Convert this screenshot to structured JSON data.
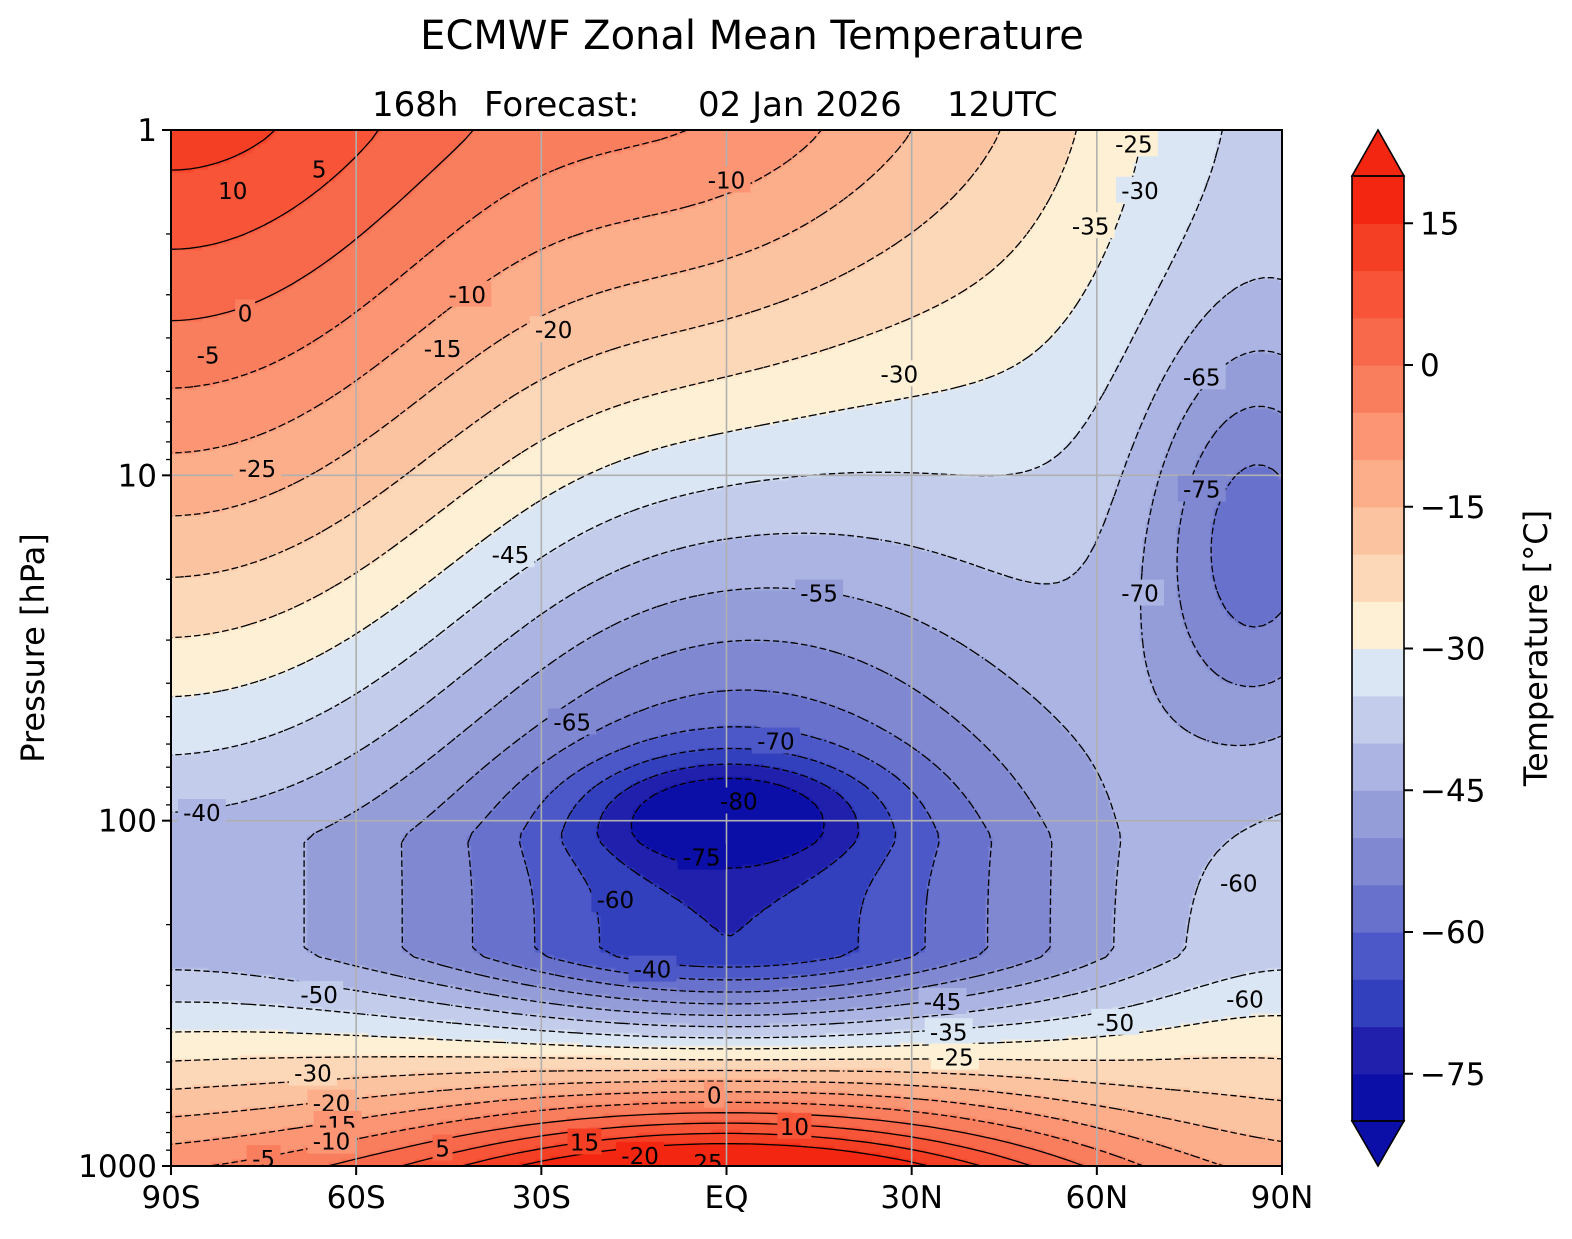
{
  "chart_data": {
    "type": "heatmap",
    "title": "ECMWF Zonal Mean Temperature",
    "subtitle": {
      "lead": "168h",
      "forecast_word": "Forecast:",
      "date": "02 Jan 2026",
      "time": "12UTC"
    },
    "xlabel": "",
    "ylabel": "Pressure [hPa]",
    "x_ticks": [
      "90S",
      "60S",
      "30S",
      "EQ",
      "30N",
      "60N",
      "90N"
    ],
    "x_values": [
      -90,
      -60,
      -30,
      0,
      30,
      60,
      90
    ],
    "xlim": [
      -90,
      90
    ],
    "y_ticks": [
      "1",
      "10",
      "100",
      "1000"
    ],
    "y_values": [
      1,
      10,
      100,
      1000
    ],
    "ylim": [
      1000,
      1
    ],
    "y_scale": "log",
    "grid": true,
    "colorbar": {
      "label": "Temperature [°C]",
      "ticks": [
        "15",
        "0",
        "−15",
        "−30",
        "−45",
        "−60",
        "−75"
      ],
      "tick_values": [
        15,
        0,
        -15,
        -30,
        -45,
        -60,
        -75
      ],
      "range": [
        -80,
        20
      ],
      "level_step": 5,
      "extend": "both",
      "colors_cold_to_warm": [
        "#0c0ea8",
        "#2020ad",
        "#3340bd",
        "#4c58c8",
        "#6872cc",
        "#8088d2",
        "#949dd8",
        "#abb4e2",
        "#c3cdeb",
        "#dbe6f5",
        "#fdf0d5",
        "#fdd8b8",
        "#fcc3a1",
        "#fcae8b",
        "#fb9574",
        "#f97e5e",
        "#f8694b",
        "#f75438",
        "#f53f25",
        "#f32612"
      ]
    },
    "fields": {
      "warm_peaks": [
        {
          "name": "upper-polar-south",
          "lat": -90,
          "pressure": 1,
          "temp": 12
        },
        {
          "name": "surface-tropics",
          "lat": 0,
          "pressure": 1000,
          "temp": 26
        }
      ],
      "cold_cores": [
        {
          "name": "tropical-tropopause",
          "lat": 0,
          "pressure": 95,
          "temp": -82
        },
        {
          "name": "north-polar-vortex",
          "lat": 90,
          "pressure": 15,
          "temp": -80
        }
      ]
    },
    "contour_labels": [
      {
        "text": "10",
        "lat": -80,
        "p": 1.5
      },
      {
        "text": "5",
        "lat": -66,
        "p": 1.3
      },
      {
        "text": "0",
        "lat": -78,
        "p": 3.4
      },
      {
        "text": "-5",
        "lat": -84,
        "p": 4.5
      },
      {
        "text": "-10",
        "lat": -42,
        "p": 3.0
      },
      {
        "text": "-15",
        "lat": -46,
        "p": 4.3
      },
      {
        "text": "-20",
        "lat": -28,
        "p": 3.8
      },
      {
        "text": "-10",
        "lat": 0,
        "p": 1.4
      },
      {
        "text": "-25",
        "lat": -76,
        "p": 9.6
      },
      {
        "text": "-30",
        "lat": 28,
        "p": 5.1
      },
      {
        "text": "-25",
        "lat": 66,
        "p": 1.1
      },
      {
        "text": "-30",
        "lat": 67,
        "p": 1.5
      },
      {
        "text": "-35",
        "lat": 59,
        "p": 1.9
      },
      {
        "text": "-45",
        "lat": -35,
        "p": 17
      },
      {
        "text": "-55",
        "lat": 15,
        "p": 22
      },
      {
        "text": "-65",
        "lat": 77,
        "p": 5.2
      },
      {
        "text": "-75",
        "lat": 77,
        "p": 11
      },
      {
        "text": "-70",
        "lat": 67,
        "p": 22
      },
      {
        "text": "-65",
        "lat": -25,
        "p": 52
      },
      {
        "text": "-70",
        "lat": 8,
        "p": 59
      },
      {
        "text": "-80",
        "lat": 2,
        "p": 88
      },
      {
        "text": "-75",
        "lat": -4,
        "p": 128
      },
      {
        "text": "-40",
        "lat": -85,
        "p": 95
      },
      {
        "text": "-60",
        "lat": 83,
        "p": 152
      },
      {
        "text": "-60",
        "lat": -18,
        "p": 170
      },
      {
        "text": "-40",
        "lat": -12,
        "p": 270
      },
      {
        "text": "-50",
        "lat": -66,
        "p": 320
      },
      {
        "text": "-45",
        "lat": 35,
        "p": 335
      },
      {
        "text": "-35",
        "lat": 36,
        "p": 410
      },
      {
        "text": "-25",
        "lat": 37,
        "p": 485
      },
      {
        "text": "-50",
        "lat": 63,
        "p": 385
      },
      {
        "text": "-60",
        "lat": 84,
        "p": 330
      },
      {
        "text": "-30",
        "lat": -67,
        "p": 540
      },
      {
        "text": "-20",
        "lat": -64,
        "p": 660
      },
      {
        "text": "-15",
        "lat": -63,
        "p": 760
      },
      {
        "text": "-10",
        "lat": -64,
        "p": 850
      },
      {
        "text": "-5",
        "lat": -75,
        "p": 955
      },
      {
        "text": "5",
        "lat": -46,
        "p": 890
      },
      {
        "text": "0",
        "lat": -2,
        "p": 625
      },
      {
        "text": "10",
        "lat": 11,
        "p": 770
      },
      {
        "text": "15",
        "lat": -23,
        "p": 855
      },
      {
        "text": "-20",
        "lat": -14,
        "p": 935
      },
      {
        "text": "25",
        "lat": -3,
        "p": 980
      }
    ]
  }
}
